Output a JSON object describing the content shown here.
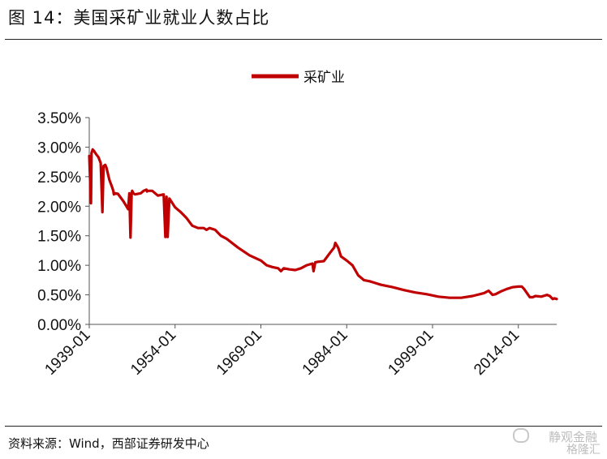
{
  "header": {
    "title": "图 14：美国采矿业就业人数占比"
  },
  "footer": {
    "source": "资料来源：Wind，西部证券研发中心"
  },
  "watermark": {
    "line1": "静观金融",
    "line2": "格隆汇"
  },
  "colors": {
    "series": "#c00000",
    "axis": "#555555"
  },
  "chart_data": {
    "type": "line",
    "title": "",
    "xlabel": "",
    "ylabel": "",
    "ylim": [
      0,
      0.035
    ],
    "y_ticks": [
      "0.00%",
      "0.50%",
      "1.00%",
      "1.50%",
      "2.00%",
      "2.50%",
      "3.00%",
      "3.50%"
    ],
    "x_ticks": [
      "1939-01",
      "1954-01",
      "1969-01",
      "1984-01",
      "1999-01",
      "2014-01"
    ],
    "xlim": [
      1939.0,
      2020.7
    ],
    "grid": false,
    "legend_position": "top-center",
    "series": [
      {
        "name": "采矿业",
        "x": [
          1939.0,
          1939.3,
          1939.4,
          1939.6,
          1939.8,
          1940.2,
          1940.6,
          1941.0,
          1941.3,
          1941.5,
          1941.8,
          1942.0,
          1942.5,
          1943.0,
          1943.2,
          1943.3,
          1943.5,
          1944.0,
          1945.0,
          1945.8,
          1946.0,
          1946.2,
          1946.4,
          1946.5,
          1946.7,
          1947.0,
          1948.0,
          1948.5,
          1949.0,
          1949.1,
          1949.3,
          1950.0,
          1951.0,
          1952.0,
          1952.3,
          1952.5,
          1952.7,
          1953.0,
          1954.0,
          1955.0,
          1956.0,
          1957.0,
          1958.0,
          1959.0,
          1959.5,
          1960.0,
          1961.0,
          1962.0,
          1963.0,
          1965.0,
          1967.0,
          1969.0,
          1970.0,
          1971.0,
          1972.0,
          1972.5,
          1973.0,
          1974.0,
          1975.0,
          1976.0,
          1977.0,
          1978.0,
          1978.2,
          1978.5,
          1979.0,
          1980.0,
          1981.0,
          1981.8,
          1982.0,
          1982.5,
          1983.0,
          1984.0,
          1985.0,
          1986.0,
          1987.0,
          1988.0,
          1989.0,
          1990.0,
          1992.0,
          1994.0,
          1996.0,
          1998.0,
          2000.0,
          2002.0,
          2004.0,
          2006.0,
          2008.0,
          2008.8,
          2009.5,
          2010.0,
          2011.0,
          2012.0,
          2013.0,
          2014.0,
          2014.6,
          2015.0,
          2016.0,
          2016.5,
          2017.0,
          2018.0,
          2019.0,
          2019.5,
          2020.0,
          2020.3,
          2020.7
        ],
        "values": [
          0.0285,
          0.0205,
          0.029,
          0.0296,
          0.0294,
          0.0288,
          0.0283,
          0.0273,
          0.019,
          0.0268,
          0.027,
          0.0265,
          0.0245,
          0.0232,
          0.0226,
          0.022,
          0.0222,
          0.0221,
          0.0208,
          0.0195,
          0.0222,
          0.0147,
          0.0222,
          0.0226,
          0.0222,
          0.022,
          0.0222,
          0.0226,
          0.0228,
          0.0225,
          0.0226,
          0.0226,
          0.0218,
          0.022,
          0.0148,
          0.0216,
          0.0148,
          0.0213,
          0.0198,
          0.019,
          0.018,
          0.0167,
          0.0163,
          0.0163,
          0.016,
          0.0163,
          0.016,
          0.015,
          0.0145,
          0.013,
          0.0117,
          0.0108,
          0.01,
          0.0097,
          0.0095,
          0.009,
          0.0095,
          0.0093,
          0.0092,
          0.0095,
          0.01,
          0.0103,
          0.009,
          0.0105,
          0.0106,
          0.0107,
          0.012,
          0.013,
          0.0138,
          0.013,
          0.0115,
          0.0108,
          0.01,
          0.0083,
          0.0075,
          0.0073,
          0.007,
          0.0067,
          0.0063,
          0.0058,
          0.0054,
          0.0051,
          0.0047,
          0.0045,
          0.0045,
          0.0048,
          0.0053,
          0.0057,
          0.005,
          0.0051,
          0.0056,
          0.006,
          0.0063,
          0.0064,
          0.0064,
          0.006,
          0.0046,
          0.0046,
          0.0048,
          0.0047,
          0.005,
          0.0048,
          0.0043,
          0.0044,
          0.0043
        ]
      }
    ]
  }
}
